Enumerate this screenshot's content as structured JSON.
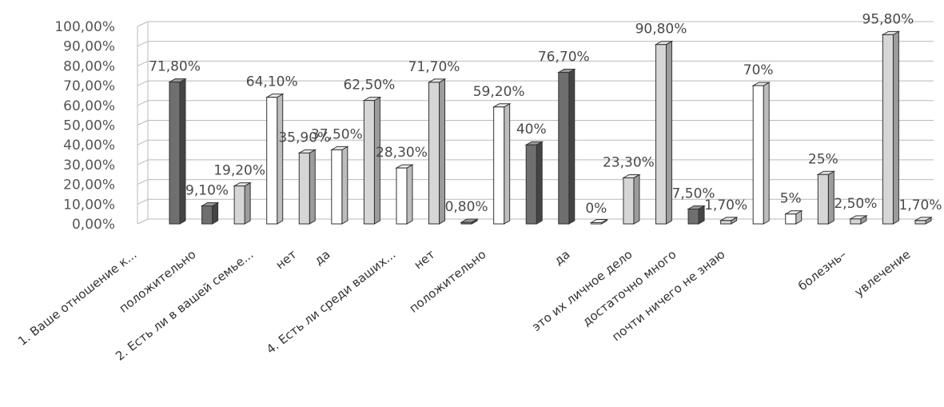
{
  "chart_data": {
    "type": "bar",
    "style": "3d-columns",
    "ylim": [
      0,
      100
    ],
    "y_ticks": [
      "0,00%",
      "10,00%",
      "20,00%",
      "30,00%",
      "40,00%",
      "50,00%",
      "60,00%",
      "70,00%",
      "80,00%",
      "90,00%",
      "100,00%"
    ],
    "grid": true,
    "series_colors": {
      "white": "#ffffff",
      "light": "#d6d6d6",
      "dark": "#6f6f6f"
    },
    "bars": [
      {
        "value": 71.8,
        "label": "71,80%",
        "tone": "dark"
      },
      {
        "value": 9.1,
        "label": "9,10%",
        "tone": "dark"
      },
      {
        "value": 19.2,
        "label": "19,20%",
        "tone": "light"
      },
      {
        "value": 64.1,
        "label": "64,10%",
        "tone": "white"
      },
      {
        "value": 35.9,
        "label": "35,90%",
        "tone": "light"
      },
      {
        "value": 37.5,
        "label": "37,50%",
        "tone": "white"
      },
      {
        "value": 62.5,
        "label": "62,50%",
        "tone": "light"
      },
      {
        "value": 28.3,
        "label": "28,30%",
        "tone": "white"
      },
      {
        "value": 71.7,
        "label": "71,70%",
        "tone": "light"
      },
      {
        "value": 0.8,
        "label": "0,80%",
        "tone": "dark"
      },
      {
        "value": 59.2,
        "label": "59,20%",
        "tone": "white"
      },
      {
        "value": 40,
        "label": "40%",
        "tone": "dark"
      },
      {
        "value": 76.7,
        "label": "76,70%",
        "tone": "dark"
      },
      {
        "value": 0,
        "label": "0%",
        "tone": "white"
      },
      {
        "value": 23.3,
        "label": "23,30%",
        "tone": "light"
      },
      {
        "value": 90.8,
        "label": "90,80%",
        "tone": "light"
      },
      {
        "value": 7.5,
        "label": "7,50%",
        "tone": "dark"
      },
      {
        "value": 1.7,
        "label": "1,70%",
        "tone": "light"
      },
      {
        "value": 70,
        "label": "70%",
        "tone": "white"
      },
      {
        "value": 5,
        "label": "5%",
        "tone": "white"
      },
      {
        "value": 25,
        "label": "25%",
        "tone": "light"
      },
      {
        "value": 2.5,
        "label": "2,50%",
        "tone": "light"
      },
      {
        "value": 95.8,
        "label": "95,80%",
        "tone": "light"
      },
      {
        "value": 1.7,
        "label": "1,70%",
        "tone": "light"
      }
    ],
    "category_labels": [
      "1. Ваше отношение к...",
      "положительно",
      "2. Есть ли в вашей семье...",
      "нет",
      "да",
      "4. Есть ли среди ваших...",
      "нет",
      "положительно",
      "да",
      "это их личное дело",
      "достаточно много",
      "почти ничего не знаю",
      "болезнь–",
      "увлечение"
    ]
  }
}
